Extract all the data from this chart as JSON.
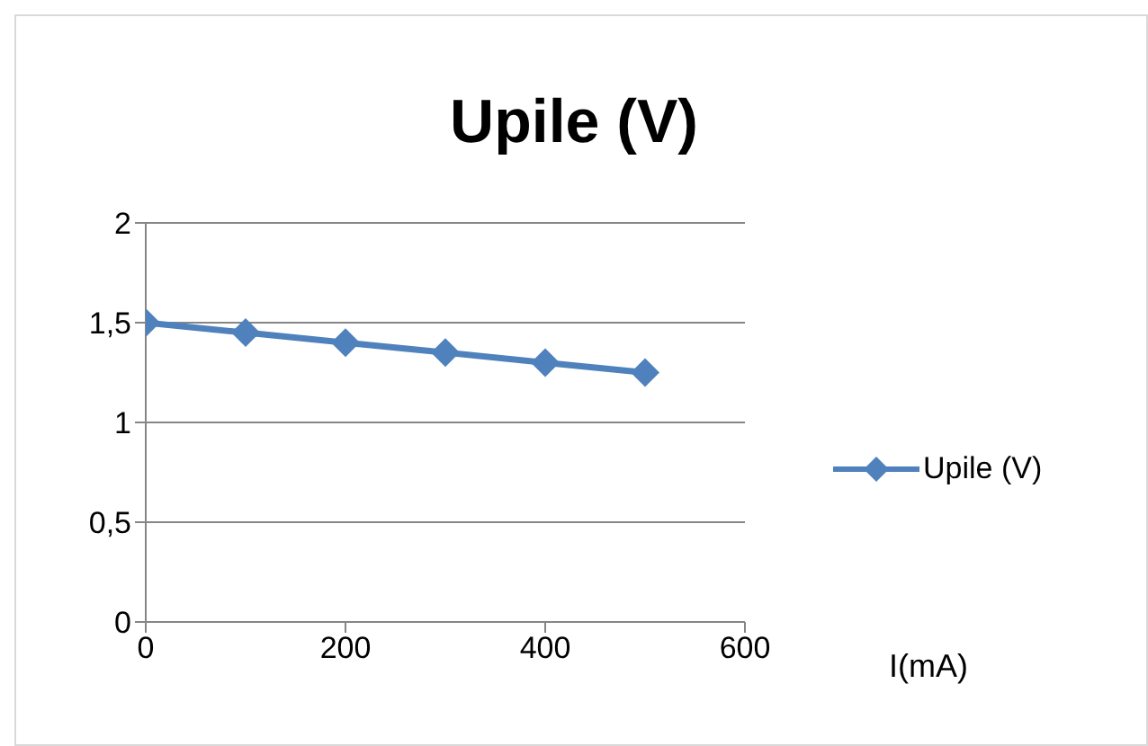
{
  "chart_data": {
    "type": "line",
    "title": "Upile (V)",
    "xlabel": "I(mA)",
    "x": [
      0,
      100,
      200,
      300,
      400,
      500
    ],
    "series": [
      {
        "name": "Upile (V)",
        "color": "#4f81bd",
        "values": [
          1.5,
          1.45,
          1.4,
          1.35,
          1.3,
          1.25
        ]
      }
    ],
    "xlim": [
      0,
      600
    ],
    "xticks": [
      0,
      200,
      400,
      600
    ],
    "ylim": [
      0,
      2
    ],
    "yticks": [
      0,
      {
        "value": 0.5,
        "label": "0,5"
      },
      1,
      {
        "value": 1.5,
        "label": "1,5"
      },
      2
    ],
    "grid": "y",
    "legend": "right",
    "marker": "diamond",
    "line_style": "solid"
  }
}
